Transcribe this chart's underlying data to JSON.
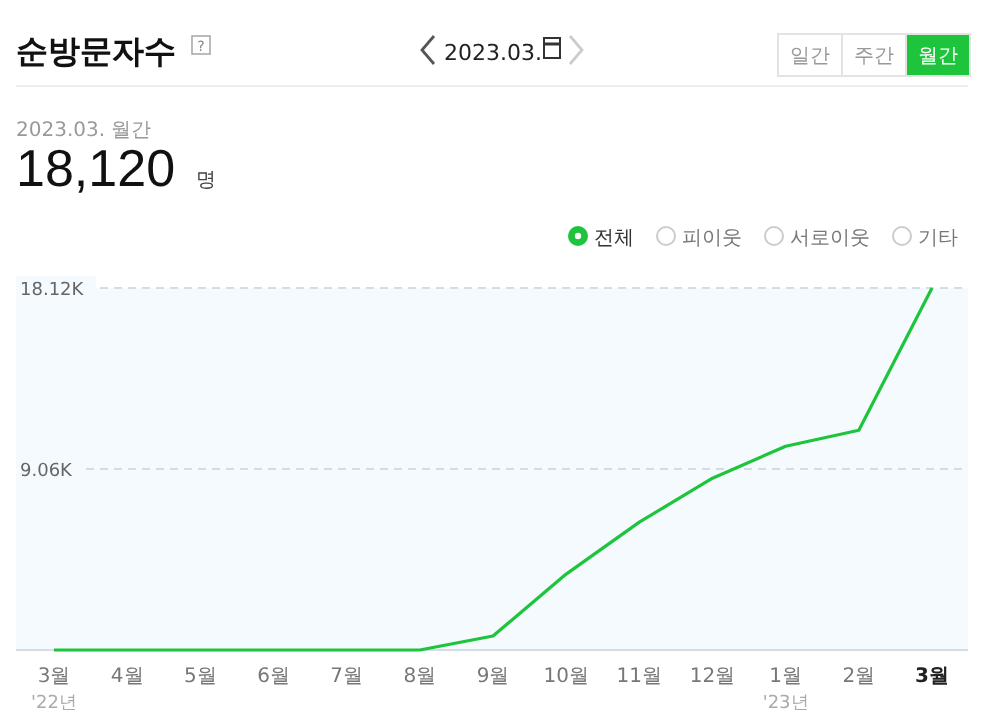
{
  "chart_data": {
    "type": "line",
    "title": "순방문자수",
    "subtitle": "2023.03. 월간",
    "categories": [
      "3월",
      "4월",
      "5월",
      "6월",
      "7월",
      "8월",
      "9월",
      "10월",
      "11월",
      "12월",
      "1월",
      "2월",
      "3월"
    ],
    "series": [
      {
        "name": "전체",
        "color": "#1ec43c",
        "values": [
          0,
          0,
          0,
          0,
          0,
          0,
          700,
          3800,
          6400,
          8600,
          10200,
          11000,
          18120
        ]
      }
    ],
    "ylim": [
      0,
      18120
    ],
    "yticks": [
      {
        "value": 0,
        "label": null
      },
      {
        "value": 9060,
        "label": "9.06K"
      },
      {
        "value": 18120,
        "label": "18.12K"
      }
    ],
    "grid": "y",
    "legend": "top right",
    "marker": "none",
    "line_style": "solid",
    "annotations": [
      "2023.03.",
      "일간",
      "주간",
      "월간",
      "18,120",
      "명",
      "피이웃",
      "서로이웃",
      "기타",
      "'22년",
      "'23년",
      "?"
    ]
  }
}
